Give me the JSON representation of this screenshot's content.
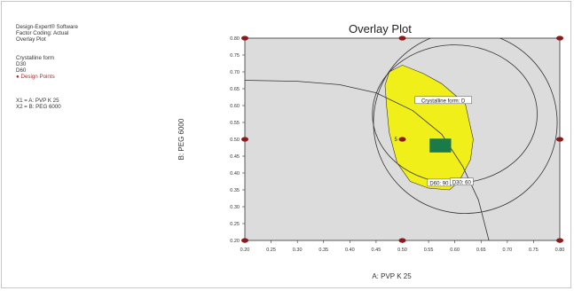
{
  "info": {
    "software": "Design-Expert® Software",
    "coding": "Factor Coding: Actual",
    "plot_name": "Overlay Plot"
  },
  "legend": {
    "heading": "Crystalline form",
    "items": [
      "D30",
      "D60"
    ],
    "design_points": "Design Points"
  },
  "factors": {
    "x1": "X1 = A: PVP K 25",
    "x2": "X2 = B: PEG 6000"
  },
  "colors": {
    "plot_bg": "#dcdcdc",
    "design_space": "#f1ef1a",
    "optimum": "#1a7a4a",
    "design_point": "#8b1a1a",
    "contour": "#333333"
  },
  "chart_data": {
    "type": "contour-overlay",
    "title": "Overlay Plot",
    "xlabel": "A: PVP K 25",
    "ylabel": "B: PEG 6000",
    "xlim": [
      0.2,
      0.8
    ],
    "ylim": [
      0.2,
      0.8
    ],
    "x_ticks": [
      "0.20",
      "0.25",
      "0.30",
      "0.35",
      "0.40",
      "0.45",
      "0.50",
      "0.55",
      "0.60",
      "0.65",
      "0.70",
      "0.75",
      "0.80"
    ],
    "y_ticks": [
      "0.80",
      "0.75",
      "0.70",
      "0.65",
      "0.60",
      "0.55",
      "0.50",
      "0.45",
      "0.40",
      "0.35",
      "0.30",
      "0.25",
      "0.20"
    ],
    "design_points": [
      {
        "x": 0.2,
        "y": 0.8
      },
      {
        "x": 0.5,
        "y": 0.8
      },
      {
        "x": 0.8,
        "y": 0.8
      },
      {
        "x": 0.2,
        "y": 0.5
      },
      {
        "x": 0.5,
        "y": 0.5
      },
      {
        "x": 0.8,
        "y": 0.5
      },
      {
        "x": 0.2,
        "y": 0.2
      },
      {
        "x": 0.5,
        "y": 0.2
      },
      {
        "x": 0.8,
        "y": 0.2
      }
    ],
    "design_point_label": "5",
    "design_space": [
      [
        0.475,
        0.7
      ],
      [
        0.5,
        0.72
      ],
      [
        0.54,
        0.695
      ],
      [
        0.575,
        0.665
      ],
      [
        0.62,
        0.605
      ],
      [
        0.635,
        0.5
      ],
      [
        0.63,
        0.44
      ],
      [
        0.608,
        0.375
      ],
      [
        0.59,
        0.35
      ],
      [
        0.55,
        0.355
      ],
      [
        0.515,
        0.375
      ],
      [
        0.49,
        0.43
      ],
      [
        0.475,
        0.52
      ],
      [
        0.47,
        0.6
      ],
      [
        0.467,
        0.66
      ]
    ],
    "optimum_region": {
      "x": [
        0.552,
        0.593
      ],
      "y": [
        0.461,
        0.502
      ]
    },
    "contours": [
      {
        "points": [
          [
            0.2,
            0.675
          ],
          [
            0.3,
            0.672
          ],
          [
            0.38,
            0.662
          ],
          [
            0.45,
            0.638
          ],
          [
            0.52,
            0.585
          ],
          [
            0.575,
            0.515
          ],
          [
            0.615,
            0.42
          ],
          [
            0.645,
            0.32
          ],
          [
            0.665,
            0.2
          ]
        ]
      },
      {
        "center": [
          0.62,
          0.55
        ],
        "rx": 0.175,
        "ry": 0.27
      },
      {
        "center": [
          0.6,
          0.575
        ],
        "rx": 0.157,
        "ry": 0.205
      }
    ],
    "annotations": [
      {
        "text": "Crystalline form: D",
        "x": 0.578,
        "y": 0.615
      },
      {
        "text": "D60: 90",
        "x": 0.57,
        "y": 0.37
      },
      {
        "text": "D30: 60",
        "x": 0.613,
        "y": 0.373
      }
    ]
  }
}
